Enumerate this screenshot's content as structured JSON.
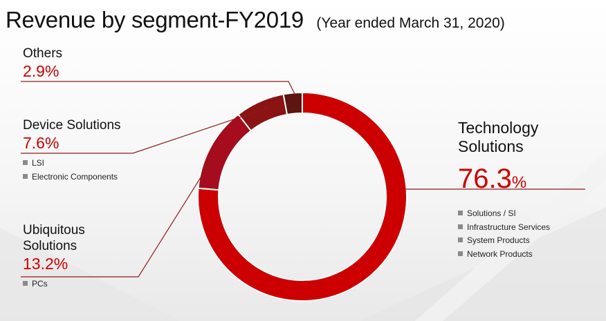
{
  "title": "Revenue by segment-FY2019",
  "subtitle": "(Year ended March 31, 2020)",
  "colors": {
    "technology": "#cc0000",
    "ubiquitous": "#a50d1e",
    "device": "#8a1313",
    "others": "#5e1410",
    "pct_text": "#cc0000",
    "leader_line": "#8e1a1a"
  },
  "chart_data": {
    "type": "pie",
    "title": "Revenue by segment-FY2019",
    "categories": [
      "Technology Solutions",
      "Ubiquitous Solutions",
      "Device Solutions",
      "Others"
    ],
    "values": [
      76.3,
      13.2,
      7.6,
      2.9
    ],
    "unit": "%"
  },
  "segments": {
    "others": {
      "name": "Others",
      "pct": "2.9%"
    },
    "device": {
      "name": "Device Solutions",
      "pct": "7.6%",
      "items": [
        "LSI",
        "Electronic Components"
      ]
    },
    "ubiquitous": {
      "name_line1": "Ubiquitous",
      "name_line2": "Solutions",
      "pct": "13.2%",
      "items": [
        "PCs"
      ]
    },
    "technology": {
      "name_line1": "Technology",
      "name_line2": "Solutions",
      "pct_value": "76.3",
      "pct_unit": "%",
      "items": [
        "Solutions / SI",
        "Infrastructure Services",
        "System Products",
        "Network Products"
      ]
    }
  }
}
